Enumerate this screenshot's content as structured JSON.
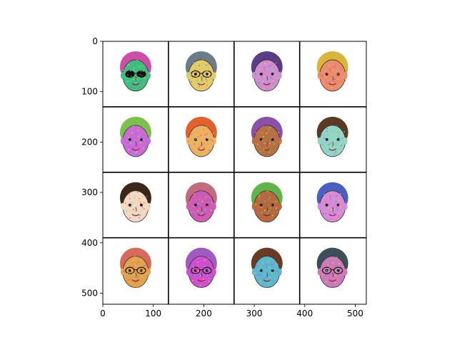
{
  "axes": {
    "x_ticks": [
      "0",
      "100",
      "200",
      "300",
      "400",
      "500"
    ],
    "y_ticks": [
      "0",
      "100",
      "200",
      "300",
      "400",
      "500"
    ],
    "x_range": [
      0,
      522
    ],
    "y_range": [
      522,
      0
    ]
  },
  "image_grid": {
    "rows": 4,
    "cols": 4,
    "cell_size": 130,
    "separator_color": "#000000",
    "tiles": [
      {
        "hair": "#d04ea8",
        "skin": "#3fbf7f",
        "glasses": true,
        "dark_glasses": true
      },
      {
        "hair": "#6a7d8a",
        "skin": "#e3cc66",
        "glasses": true,
        "dark_glasses": false
      },
      {
        "hair": "#5b3c86",
        "skin": "#d08ed0",
        "glasses": false,
        "dark_glasses": false
      },
      {
        "hair": "#d9b53a",
        "skin": "#f08a6a",
        "glasses": false,
        "dark_glasses": false
      },
      {
        "hair": "#7ac24a",
        "skin": "#c96ad8",
        "glasses": false,
        "dark_glasses": false
      },
      {
        "hair": "#e3612a",
        "skin": "#f0b060",
        "glasses": false,
        "dark_glasses": false
      },
      {
        "hair": "#8a4fa8",
        "skin": "#b8713e",
        "glasses": false,
        "dark_glasses": false
      },
      {
        "hair": "#5a3a22",
        "skin": "#8fd6c8",
        "glasses": false,
        "dark_glasses": false
      },
      {
        "hair": "#3b2617",
        "skin": "#f3d9c2",
        "glasses": false,
        "dark_glasses": false
      },
      {
        "hair": "#c26b7c",
        "skin": "#cf5bb7",
        "glasses": false,
        "dark_glasses": false
      },
      {
        "hair": "#5fb54a",
        "skin": "#b7693b",
        "glasses": false,
        "dark_glasses": false
      },
      {
        "hair": "#4a5fc2",
        "skin": "#d78ad8",
        "glasses": false,
        "dark_glasses": false
      },
      {
        "hair": "#d96a5a",
        "skin": "#e6a24a",
        "glasses": true,
        "dark_glasses": false
      },
      {
        "hair": "#a05ac2",
        "skin": "#cf4fd0",
        "glasses": true,
        "dark_glasses": false
      },
      {
        "hair": "#6a3b22",
        "skin": "#5bb8d0",
        "glasses": false,
        "dark_glasses": false
      },
      {
        "hair": "#3a4f5a",
        "skin": "#cf7ab8",
        "glasses": true,
        "dark_glasses": false
      }
    ]
  }
}
